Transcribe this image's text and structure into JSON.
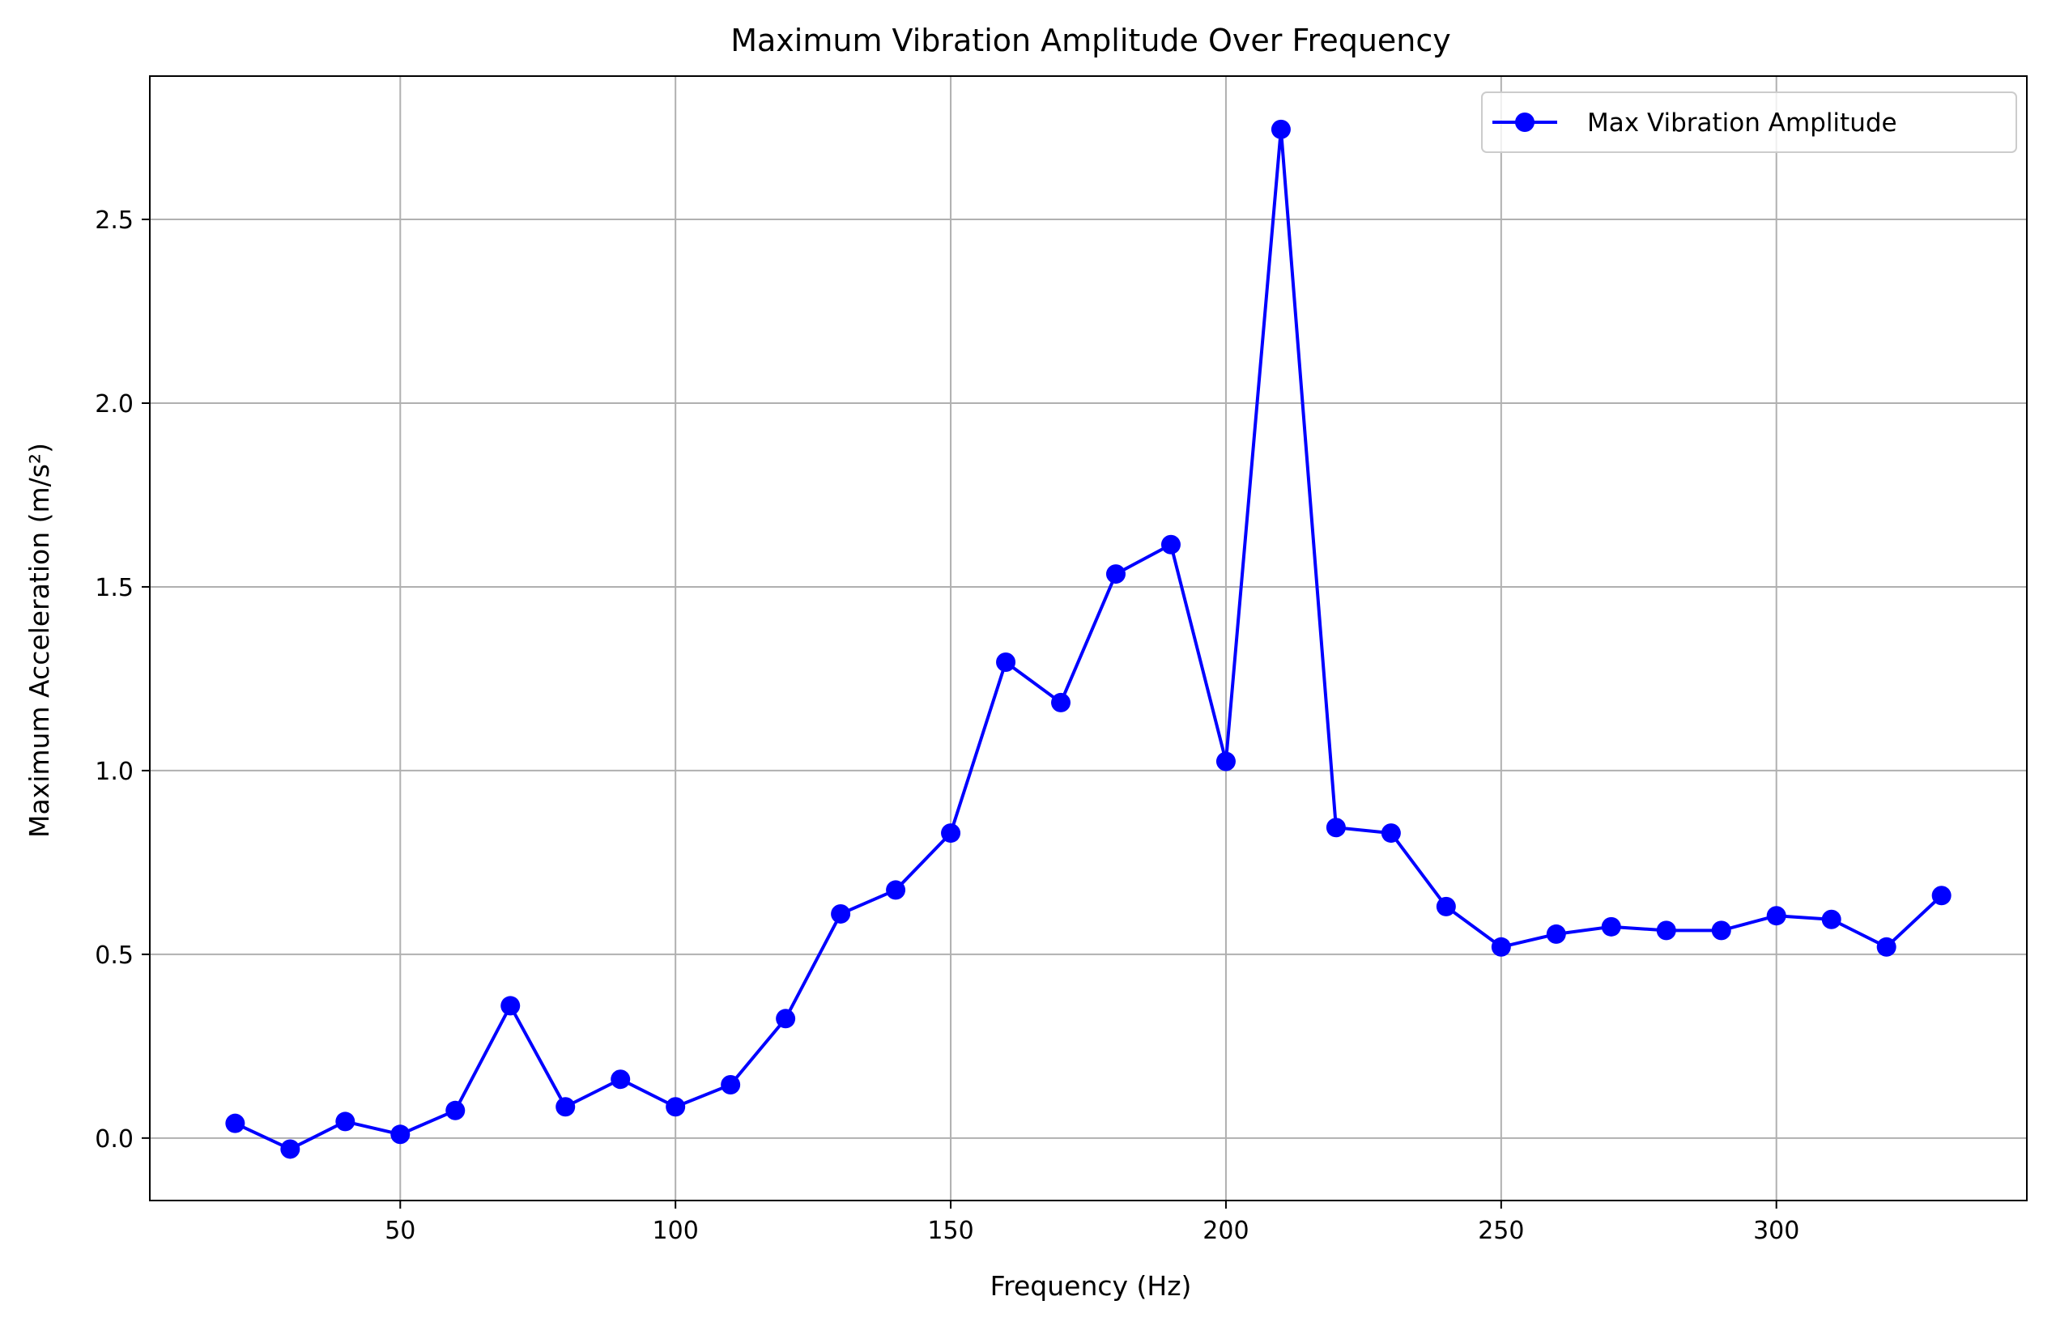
{
  "chart_data": {
    "type": "line",
    "title": "Maximum Vibration Amplitude Over Frequency",
    "xlabel": "Frequency (Hz)",
    "ylabel": "Maximum Acceleration (m/s²)",
    "xlim": [
      4.5,
      345.5
    ],
    "ylim": [
      -0.17,
      2.89
    ],
    "xticks": [
      50,
      100,
      150,
      200,
      250,
      300
    ],
    "xtick_labels": [
      "50",
      "100",
      "150",
      "200",
      "250",
      "300"
    ],
    "yticks": [
      0.0,
      0.5,
      1.0,
      1.5,
      2.0,
      2.5
    ],
    "ytick_labels": [
      "0.0",
      "0.5",
      "1.0",
      "1.5",
      "2.0",
      "2.5"
    ],
    "grid": true,
    "legend_position": "top-right",
    "series": [
      {
        "name": "Max Vibration Amplitude",
        "color": "#0000ff",
        "marker": "circle",
        "x": [
          20,
          30,
          40,
          50,
          60,
          70,
          80,
          90,
          100,
          110,
          120,
          130,
          140,
          150,
          160,
          170,
          180,
          190,
          200,
          210,
          220,
          230,
          240,
          250,
          260,
          270,
          280,
          290,
          300,
          310,
          320,
          330
        ],
        "y": [
          0.04,
          -0.03,
          0.045,
          0.01,
          0.075,
          0.36,
          0.085,
          0.16,
          0.085,
          0.145,
          0.325,
          0.61,
          0.675,
          0.83,
          1.295,
          1.185,
          1.535,
          1.615,
          1.025,
          2.745,
          0.845,
          0.83,
          0.63,
          0.52,
          0.555,
          0.575,
          0.565,
          0.565,
          0.605,
          0.595,
          0.52,
          0.66
        ]
      }
    ]
  }
}
